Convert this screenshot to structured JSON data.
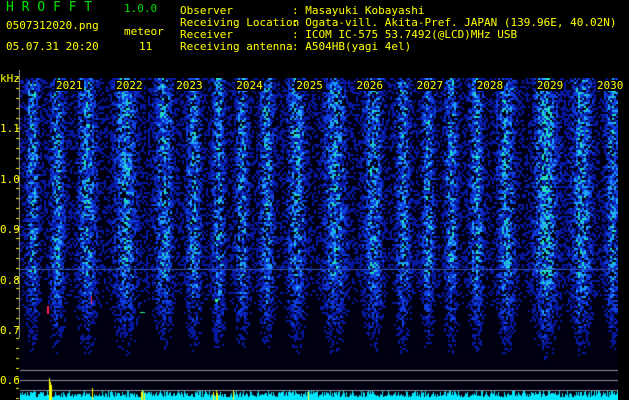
{
  "app": {
    "title": "H R O F F T",
    "version": "1.0.0"
  },
  "file": {
    "name": "0507312020.png",
    "datetime": "05.07.31 20:20"
  },
  "meteor": {
    "label": "meteor",
    "count": "11"
  },
  "info": {
    "observer_label": "Observer",
    "observer": ": Masayuki Kobayashi",
    "location_label": "Receiving Location",
    "location": ": Ogata-vill. Akita-Pref. JAPAN (139.96E, 40.02N)",
    "receiver_label": "Receiver",
    "receiver": ": ICOM IC-575 53.7492(@LCD)MHz USB",
    "antenna_label": "Receiving antenna",
    "antenna": ": A504HB(yagi 4el)"
  },
  "axis": {
    "unit": "kHz",
    "y_labels": [
      "1.1",
      "1.0",
      "0.9",
      "0.8",
      "0.7",
      "0.6"
    ],
    "x_labels": [
      "2021",
      "2022",
      "2023",
      "2024",
      "2025",
      "2026",
      "2027",
      "2028",
      "2029",
      "2030"
    ]
  },
  "colors": {
    "text": "#ffff00",
    "logo": "#00e000",
    "histogram": "#00e8ff",
    "meteor_bar": "#ffff00"
  }
}
